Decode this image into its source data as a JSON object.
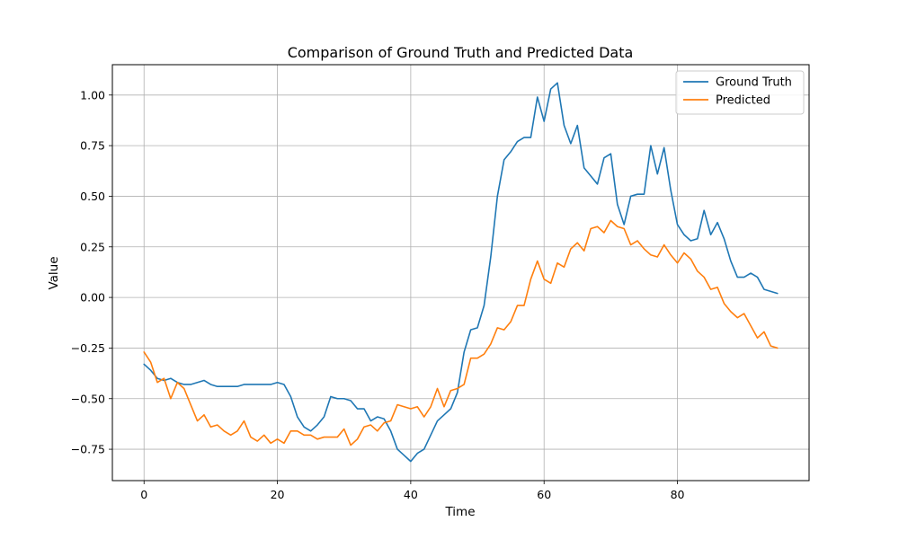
{
  "chart_data": {
    "type": "line",
    "title": "Comparison of Ground Truth and Predicted Data",
    "xlabel": "Time",
    "ylabel": "Value",
    "xlim": [
      -4.75,
      99.75
    ],
    "ylim": [
      -0.905,
      1.15
    ],
    "xticks": [
      0,
      20,
      40,
      60,
      80
    ],
    "yticks": [
      -0.75,
      -0.5,
      -0.25,
      0.0,
      0.25,
      0.5,
      0.75,
      1.0
    ],
    "ytick_labels": [
      "−0.75",
      "−0.50",
      "−0.25",
      "0.00",
      "0.25",
      "0.50",
      "0.75",
      "1.00"
    ],
    "grid": true,
    "legend_position": "top-right",
    "series": [
      {
        "name": "Ground Truth",
        "color": "#1f77b4",
        "values": [
          -0.33,
          -0.36,
          -0.4,
          -0.41,
          -0.4,
          -0.42,
          -0.43,
          -0.43,
          -0.42,
          -0.41,
          -0.43,
          -0.44,
          -0.44,
          -0.44,
          -0.44,
          -0.43,
          -0.43,
          -0.43,
          -0.43,
          -0.43,
          -0.42,
          -0.43,
          -0.49,
          -0.59,
          -0.64,
          -0.66,
          -0.63,
          -0.59,
          -0.49,
          -0.5,
          -0.5,
          -0.51,
          -0.55,
          -0.55,
          -0.61,
          -0.59,
          -0.6,
          -0.66,
          -0.75,
          -0.78,
          -0.81,
          -0.77,
          -0.75,
          -0.68,
          -0.61,
          -0.58,
          -0.55,
          -0.47,
          -0.27,
          -0.16,
          -0.15,
          -0.04,
          0.2,
          0.5,
          0.68,
          0.72,
          0.77,
          0.79,
          0.79,
          0.99,
          0.87,
          1.03,
          1.06,
          0.85,
          0.76,
          0.85,
          0.64,
          0.6,
          0.56,
          0.69,
          0.71,
          0.46,
          0.36,
          0.5,
          0.51,
          0.51,
          0.75,
          0.61,
          0.74,
          0.53,
          0.36,
          0.31,
          0.28,
          0.29,
          0.43,
          0.31,
          0.37,
          0.29,
          0.18,
          0.1,
          0.1,
          0.12,
          0.1,
          0.04,
          0.03,
          0.02
        ]
      },
      {
        "name": "Predicted",
        "color": "#ff7f0e",
        "values": [
          -0.27,
          -0.32,
          -0.42,
          -0.4,
          -0.5,
          -0.42,
          -0.45,
          -0.53,
          -0.61,
          -0.58,
          -0.64,
          -0.63,
          -0.66,
          -0.68,
          -0.66,
          -0.61,
          -0.69,
          -0.71,
          -0.68,
          -0.72,
          -0.7,
          -0.72,
          -0.66,
          -0.66,
          -0.68,
          -0.68,
          -0.7,
          -0.69,
          -0.69,
          -0.69,
          -0.65,
          -0.73,
          -0.7,
          -0.64,
          -0.63,
          -0.66,
          -0.62,
          -0.61,
          -0.53,
          -0.54,
          -0.55,
          -0.54,
          -0.59,
          -0.54,
          -0.45,
          -0.54,
          -0.46,
          -0.45,
          -0.43,
          -0.3,
          -0.3,
          -0.28,
          -0.23,
          -0.15,
          -0.16,
          -0.12,
          -0.04,
          -0.04,
          0.09,
          0.18,
          0.09,
          0.07,
          0.17,
          0.15,
          0.24,
          0.27,
          0.23,
          0.34,
          0.35,
          0.32,
          0.38,
          0.35,
          0.34,
          0.26,
          0.28,
          0.24,
          0.21,
          0.2,
          0.26,
          0.21,
          0.17,
          0.22,
          0.19,
          0.13,
          0.1,
          0.04,
          0.05,
          -0.03,
          -0.07,
          -0.1,
          -0.08,
          -0.14,
          -0.2,
          -0.17,
          -0.24,
          -0.25
        ]
      }
    ]
  }
}
